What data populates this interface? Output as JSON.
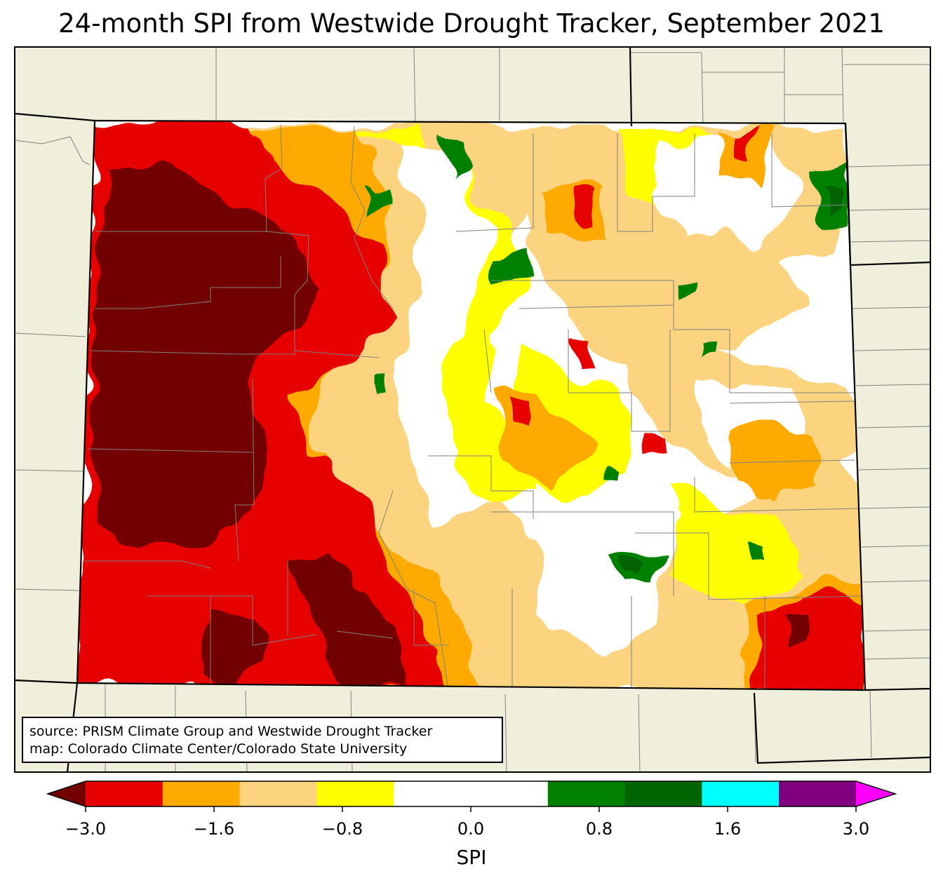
{
  "title": "24-month SPI from Westwide Drought Tracker, September 2021",
  "credits": {
    "line1": "source: PRISM Climate Group and Westwide Drought Tracker",
    "line2": "map: Colorado Climate Center/Colorado State University"
  },
  "colorbar": {
    "label": "SPI",
    "ticks": [
      "−3.0",
      "−1.6",
      "−0.8",
      "0.0",
      "0.8",
      "1.6",
      "3.0"
    ],
    "bins": [
      {
        "color": "#720000"
      },
      {
        "color": "#e60000"
      },
      {
        "color": "#ffaa00"
      },
      {
        "color": "#fcd37f"
      },
      {
        "color": "#ffff00"
      },
      {
        "color": "#ffffff"
      },
      {
        "color": "#ffffff"
      },
      {
        "color": "#008000"
      },
      {
        "color": "#006400"
      },
      {
        "color": "#00ffff"
      },
      {
        "color": "#800080"
      },
      {
        "color": "#ff00ff"
      }
    ]
  },
  "colors": {
    "land_background": "#f0efdc",
    "state_border": "#000000",
    "county_lines": "#808080"
  }
}
